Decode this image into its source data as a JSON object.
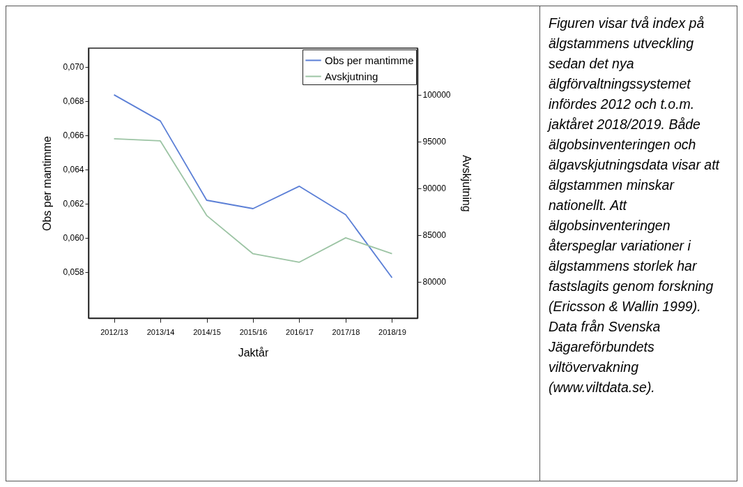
{
  "chart_data": {
    "type": "line",
    "xlabel": "Jaktår",
    "ylabel": "Obs per mantimme",
    "y2label": "Avskjutning",
    "categories": [
      "2012/13",
      "2013/14",
      "2014/15",
      "2015/16",
      "2016/17",
      "2017/18",
      "2018/19"
    ],
    "series": [
      {
        "name": "Obs per mantimme",
        "color": "#5b7fd6",
        "values": [
          0.06837,
          0.06684,
          0.0622,
          0.06171,
          0.06302,
          0.06135,
          0.05767
        ]
      },
      {
        "name": "Avskjutning",
        "color": "#9cc4a4",
        "axis": "y2",
        "values": [
          95300,
          95070,
          87090,
          82990,
          82090,
          84700,
          83000
        ]
      }
    ],
    "ylim": [
      0.0553,
      0.0711
    ],
    "yticks": [
      {
        "value": 0.058,
        "label": "0,058"
      },
      {
        "value": 0.06,
        "label": "0,060"
      },
      {
        "value": 0.062,
        "label": "0,062"
      },
      {
        "value": 0.064,
        "label": "0,064"
      },
      {
        "value": 0.066,
        "label": "0,066"
      },
      {
        "value": 0.068,
        "label": "0,068"
      },
      {
        "value": 0.07,
        "label": "0,070"
      }
    ],
    "y2lim": [
      76100,
      105000
    ],
    "y2ticks": [
      80000,
      85000,
      90000,
      95000,
      100000
    ],
    "legend": "top right",
    "grid": false,
    "marker": "none",
    "line_style": "solid",
    "annotations": [
      "Figuren visar två index på älgstammens utveckling sedan det nya älgförvaltningssystemet infördes 2012 och t.o.m. jaktåret 2018/2019. Både älgobsinventeringen och älgavskjutningsdata visar att älgstammen minskar nationellt. Att älgobsinventeringen återspeglar variationer i älgstammens storlek har fastslagits genom forskning (Ericsson & Wallin 1999). Data från Svenska Jägareförbundets viltövervakning (www.viltdata.se)."
    ]
  }
}
